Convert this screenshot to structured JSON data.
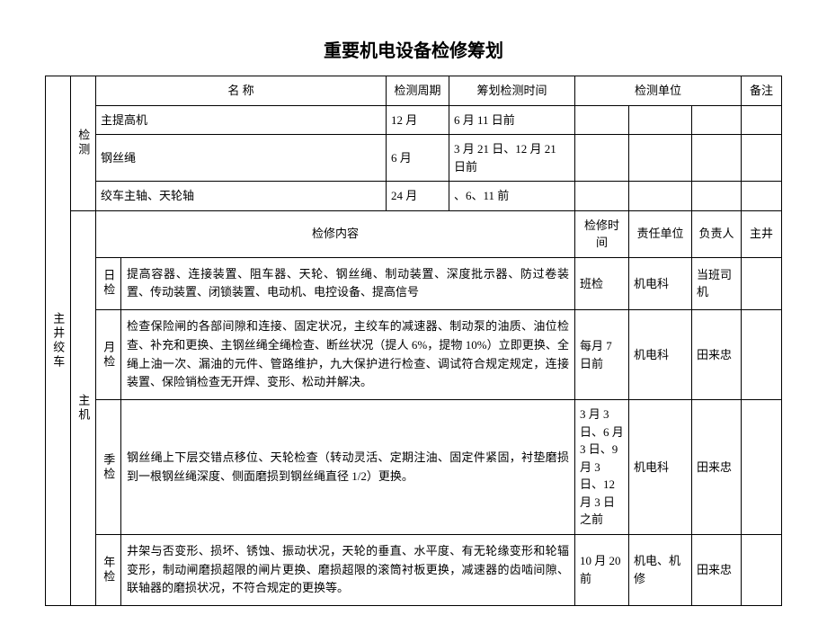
{
  "title": "重要机电设备检修筹划",
  "header": {
    "name": "名 称",
    "period": "检测周期",
    "plan_time": "筹划检测时间",
    "unit": "检测单位",
    "remark": "备注"
  },
  "left_label": "主井绞车",
  "section1_label": "检测",
  "section2_label": "主机",
  "rows1": [
    {
      "name": "主提高机",
      "period": "12 月",
      "plan_time": "6 月 11 日前"
    },
    {
      "name": "钢丝绳",
      "period": "6 月",
      "plan_time": "3 月 21 日、12 月 21 日前"
    },
    {
      "name": "绞车主轴、天轮轴",
      "period": "24 月",
      "plan_time": "、6、11 前"
    }
  ],
  "header2": {
    "content": "检修内容",
    "time": "检修时间",
    "unit": "责任单位",
    "person": "负责人",
    "remark": "主井"
  },
  "rows2": [
    {
      "type": "日检",
      "content": "提高容器、连接装置、阻车器、天轮、钢丝绳、制动装置、深度批示器、防过卷装置、传动装置、闭锁装置、电动机、电控设备、提高信号",
      "time": "班检",
      "unit": "机电科",
      "person": "当班司机"
    },
    {
      "type": "月检",
      "content": "检查保险闸的各部间隙和连接、固定状况，主绞车的减速器、制动泵的油质、油位检查、补充和更换、主钢丝绳全绳检查、断丝状况（提人 6%，提物 10%）立即更换、全绳上油一次、漏油的元件、管路维护，九大保护进行检查、调试符合规定规定，连接装置、保险销检查无开焊、变形、松动并解决。",
      "time": "每月 7 日前",
      "unit": "机电科",
      "person": "田来忠"
    },
    {
      "type": "季检",
      "content": "钢丝绳上下层交错点移位、天轮检查（转动灵活、定期注油、固定件紧固，衬垫磨损到一根钢丝绳深度、侧面磨损到钢丝绳直径 1/2）更换。",
      "time": "3 月 3 日、6 月 3 日、9 月 3 日、12 月 3 日之前",
      "unit": "机电科",
      "person": "田来忠"
    },
    {
      "type": "年检",
      "content": "井架与否变形、损坏、锈蚀、振动状况，天轮的垂直、水平度、有无轮缘变形和轮辐变形，制动闸磨损超限的闸片更换、磨损超限的滚筒衬板更换，减速器的齿啮间隙、联轴器的磨损状况，不符合规定的更换等。",
      "time": "10 月 20 前",
      "unit": "机电、机修",
      "person": "田来忠"
    }
  ],
  "styling": {
    "background_color": "#ffffff",
    "border_color": "#000000",
    "text_color": "#000000",
    "title_fontsize": 20,
    "body_fontsize": 13,
    "line_height": 1.5
  }
}
